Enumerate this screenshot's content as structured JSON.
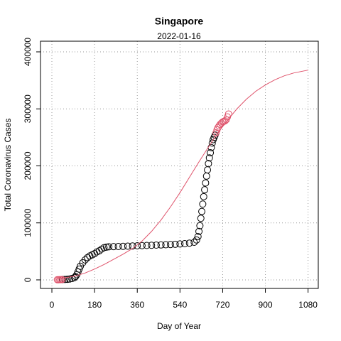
{
  "chart_data": {
    "type": "scatter",
    "title": "Singapore",
    "subtitle": "2022-01-16",
    "x_label": "Day of Year",
    "y_label": "Total Coronavirus Cases",
    "xlim": [
      -48,
      1123
    ],
    "ylim": [
      -15000,
      418700
    ],
    "xticks": [
      0,
      180,
      360,
      540,
      720,
      900,
      1080
    ],
    "yticks": [
      0,
      100000,
      200000,
      300000,
      400000
    ],
    "grid": true,
    "series": [
      {
        "kind": "points",
        "color": "#000000",
        "x": [
          45,
          55,
          65,
          75,
          85,
          95,
          100,
          105,
          110,
          115,
          120,
          130,
          140,
          150,
          160,
          170,
          180,
          190,
          200,
          210,
          220,
          230,
          240,
          260,
          280,
          300,
          320,
          340,
          360,
          380,
          400,
          420,
          440,
          460,
          480,
          500,
          520,
          540,
          560,
          580,
          600,
          610,
          616,
          620,
          624,
          628,
          632,
          636,
          640,
          644,
          648,
          652,
          656,
          660,
          664,
          668,
          672,
          676,
          680,
          684,
          688
        ],
        "values": [
          600,
          800,
          1000,
          1500,
          2500,
          4000,
          6000,
          9000,
          14000,
          19000,
          24000,
          30000,
          35000,
          39000,
          42000,
          44000,
          46000,
          49000,
          51000,
          54000,
          56500,
          57500,
          58000,
          58300,
          58600,
          58900,
          59200,
          59500,
          59800,
          60100,
          60400,
          60700,
          61000,
          61300,
          61600,
          62000,
          62500,
          63000,
          63500,
          64500,
          66000,
          70000,
          76000,
          85000,
          95000,
          108000,
          120000,
          133000,
          146000,
          158000,
          170000,
          182000,
          193000,
          204000,
          214000,
          223000,
          232000,
          240000,
          246000,
          250000,
          254000
        ]
      },
      {
        "kind": "points",
        "color": "#DF536B",
        "x": [
          23,
          28,
          33,
          38,
          43,
          692,
          696,
          700,
          705,
          710,
          715,
          720,
          725,
          730,
          735,
          740,
          745
        ],
        "values": [
          300,
          300,
          400,
          400,
          500,
          258000,
          263000,
          267000,
          270000,
          273000,
          275000,
          277000,
          278000,
          279000,
          281000,
          286000,
          291000
        ]
      },
      {
        "kind": "line",
        "color": "#DF536B",
        "x": [
          23,
          60,
          100,
          140,
          180,
          220,
          260,
          300,
          340,
          380,
          420,
          460,
          500,
          540,
          580,
          620,
          660,
          700,
          740,
          780,
          820,
          860,
          900,
          940,
          980,
          1020,
          1080
        ],
        "values": [
          2000,
          4000,
          7000,
          12000,
          19000,
          27000,
          36000,
          45000,
          55000,
          68000,
          85000,
          105000,
          128000,
          153000,
          180000,
          207000,
          233000,
          258000,
          280000,
          300000,
          317000,
          331000,
          342000,
          351000,
          358000,
          363000,
          368000
        ]
      }
    ]
  }
}
